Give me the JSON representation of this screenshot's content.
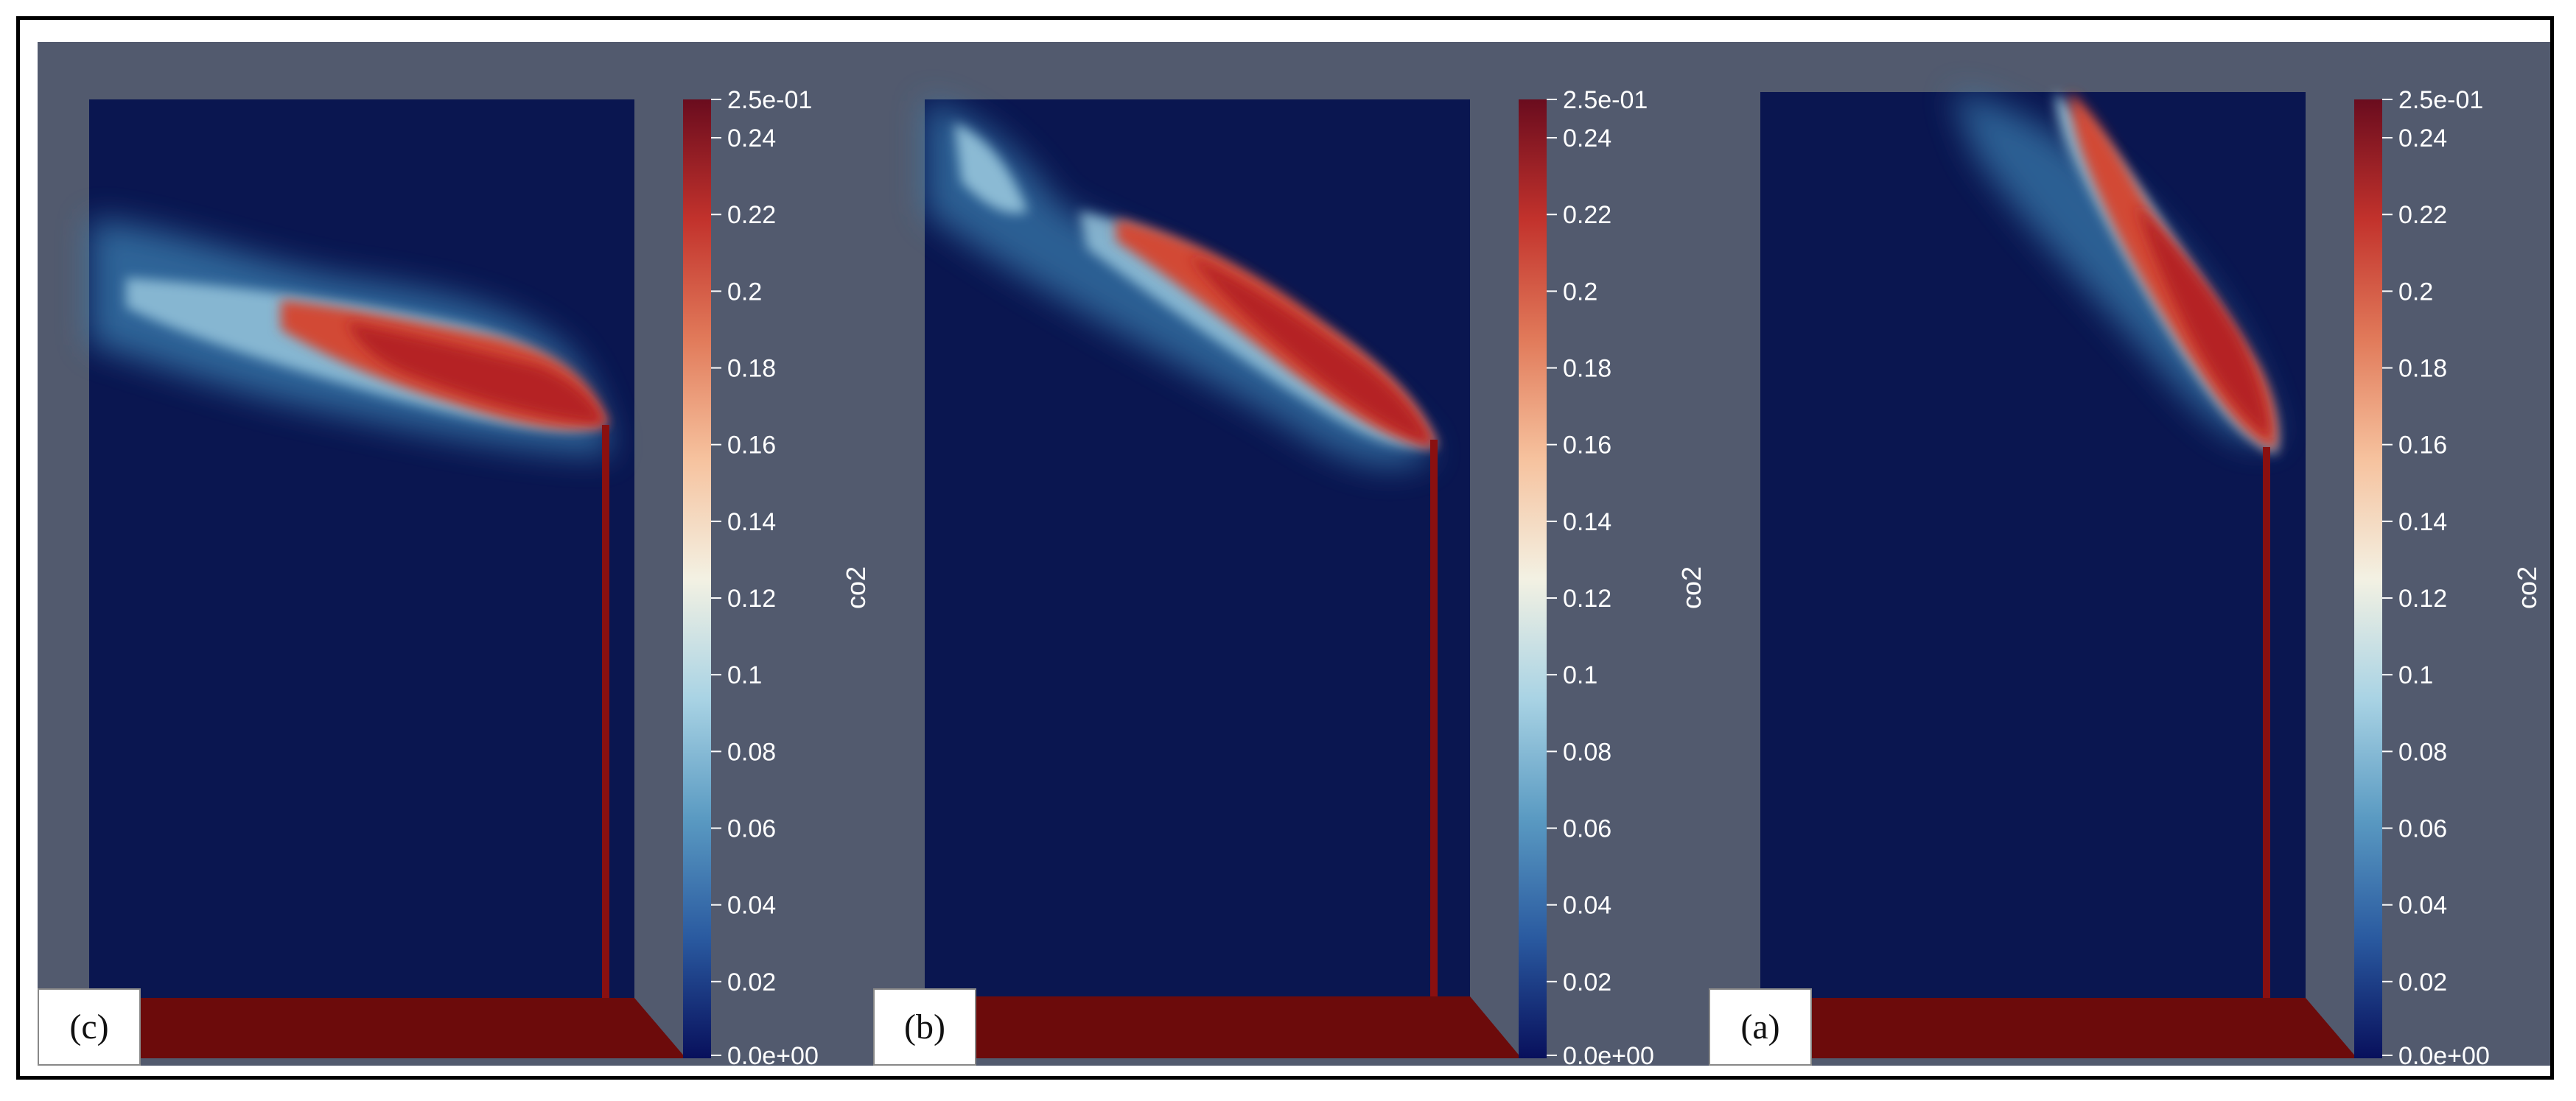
{
  "figure": {
    "panels": [
      {
        "label": "(c)",
        "colorbar_title": "co2",
        "colorbar_top_label": "2.5e-01",
        "colorbar_bottom_label": "0.0e+00",
        "ticks": [
          "0.24",
          "0.22",
          "0.2",
          "0.18",
          "0.16",
          "0.14",
          "0.12",
          "0.1",
          "0.08",
          "0.06",
          "0.04",
          "0.02"
        ]
      },
      {
        "label": "(b)",
        "colorbar_title": "co2",
        "colorbar_top_label": "2.5e-01",
        "colorbar_bottom_label": "0.0e+00",
        "ticks": [
          "0.24",
          "0.22",
          "0.2",
          "0.18",
          "0.16",
          "0.14",
          "0.12",
          "0.1",
          "0.08",
          "0.06",
          "0.04",
          "0.02"
        ]
      },
      {
        "label": "(a)",
        "colorbar_title": "co2",
        "colorbar_top_label": "2.5e-01",
        "colorbar_bottom_label": "0.0e+00",
        "ticks": [
          "0.24",
          "0.22",
          "0.2",
          "0.18",
          "0.16",
          "0.14",
          "0.12",
          "0.1",
          "0.08",
          "0.06",
          "0.04",
          "0.02"
        ]
      }
    ],
    "colormap": [
      "#08105c",
      "#2a5aa0",
      "#5a9ac2",
      "#a9d3e4",
      "#f3f1e3",
      "#f6c29e",
      "#e17a5a",
      "#c2322c",
      "#6a0c1e"
    ],
    "colors": {
      "background": "#525a6e",
      "domain": "#0a1650",
      "floor": "#6c0b0b",
      "injector": "#8a1010"
    }
  }
}
